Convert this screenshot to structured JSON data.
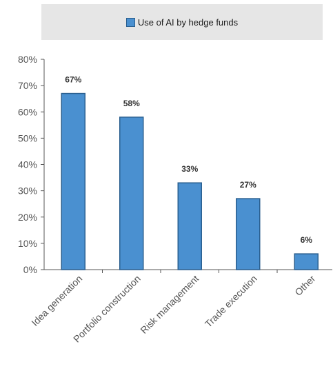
{
  "chart_data": {
    "type": "bar",
    "categories": [
      "Idea generation",
      "Portfolio construction",
      "Risk management",
      "Trade execution",
      "Other"
    ],
    "series": [
      {
        "name": "Use of AI by hedge funds",
        "values": [
          67,
          58,
          33,
          27,
          6
        ]
      }
    ],
    "data_labels": [
      "67%",
      "58%",
      "33%",
      "27%",
      "6%"
    ],
    "ylim": [
      0,
      80
    ],
    "yticks": [
      0,
      10,
      20,
      30,
      40,
      50,
      60,
      70,
      80
    ],
    "ytick_labels": [
      "0%",
      "10%",
      "20%",
      "30%",
      "40%",
      "50%",
      "60%",
      "70%",
      "80%"
    ],
    "grid": false,
    "legend_position": "top",
    "bar_color": "#4a90d0",
    "bar_edge_color": "#2a5f8f"
  }
}
